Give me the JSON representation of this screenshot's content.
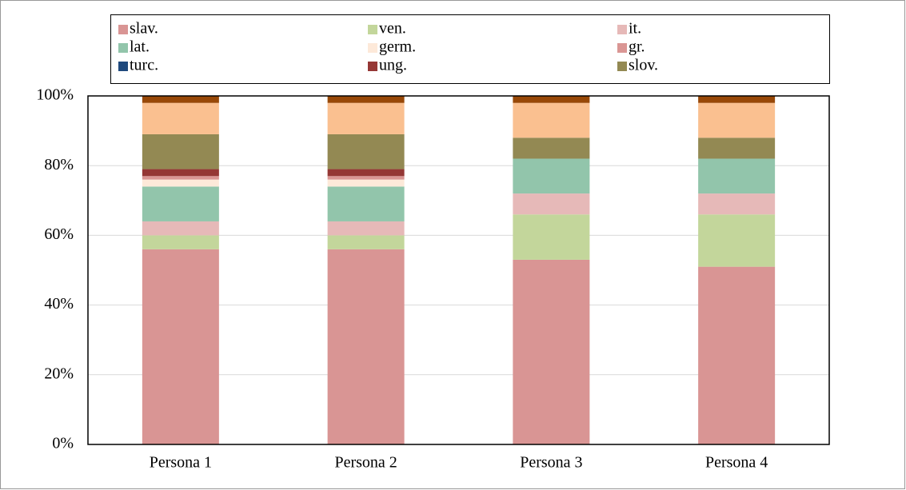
{
  "chart_data": {
    "type": "stacked_bar",
    "categories": [
      "Persona 1",
      "Persona 2",
      "Persona 3",
      "Persona 4"
    ],
    "series": [
      {
        "name": "slav.",
        "color": "#d99594",
        "values": [
          56,
          56,
          53,
          51
        ]
      },
      {
        "name": "ven.",
        "color": "#c3d69b",
        "values": [
          4,
          4,
          13,
          15
        ]
      },
      {
        "name": "it.",
        "color": "#e6b9b8",
        "values": [
          4,
          4,
          6,
          6
        ]
      },
      {
        "name": "lat.",
        "color": "#92c5ab",
        "values": [
          10,
          10,
          10,
          10
        ]
      },
      {
        "name": "germ.",
        "color": "#fde9d9",
        "values": [
          2,
          2,
          0,
          0
        ]
      },
      {
        "name": "gr.",
        "color": "#da9694",
        "values": [
          1,
          1,
          0,
          0
        ]
      },
      {
        "name": "turc.",
        "color": "#1f497d",
        "values": [
          0,
          0,
          0,
          0
        ]
      },
      {
        "name": "ung.",
        "color": "#953735",
        "values": [
          2,
          2,
          0,
          0
        ]
      },
      {
        "name": "slov.",
        "color": "#938953",
        "values": [
          10,
          10,
          6,
          6
        ]
      },
      {
        "name": null,
        "color": "#fac090",
        "values": [
          9,
          9,
          10,
          10
        ]
      },
      {
        "name": null,
        "color": "#984807",
        "values": [
          2,
          2,
          2,
          2
        ]
      }
    ],
    "ylim": [
      0,
      100
    ],
    "yticks": [
      {
        "value": 0,
        "label": "0%"
      },
      {
        "value": 20,
        "label": "20%"
      },
      {
        "value": 40,
        "label": "40%"
      },
      {
        "value": 60,
        "label": "60%"
      },
      {
        "value": 80,
        "label": "80%"
      },
      {
        "value": 100,
        "label": "100%"
      }
    ],
    "grid": true
  }
}
